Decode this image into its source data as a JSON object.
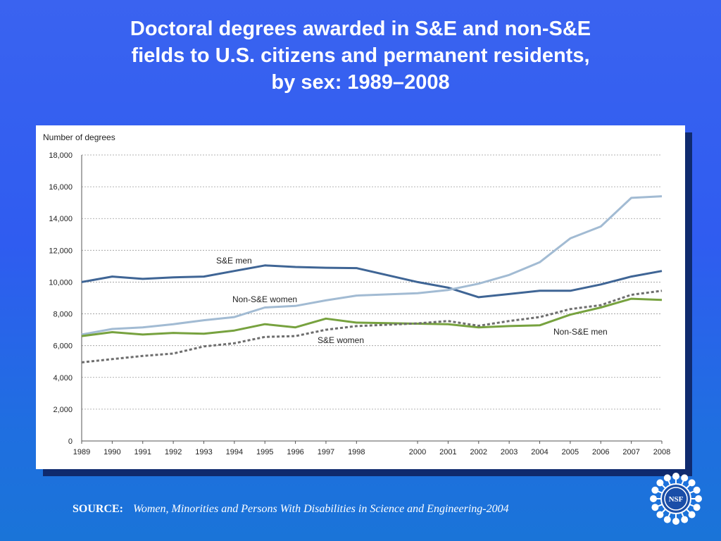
{
  "title_lines": [
    "Doctoral degrees awarded in S&E and non-S&E",
    "fields to U.S. citizens and permanent residents,",
    "by sex: 1989–2008"
  ],
  "source": {
    "label": "SOURCE:",
    "reference": "Women, Minorities and Persons With Disabilities in Science and Engineering-2004"
  },
  "logo_text": "NSF",
  "colors": {
    "sne_men": "#3f6595",
    "non_sne_women": "#a2bbd3",
    "non_sne_men": "#77a23f",
    "sne_women": "#6e6e6e",
    "background": "#2f5cf0"
  },
  "chart_data": {
    "type": "line",
    "ylabel": "Number of degrees",
    "ylim": [
      0,
      18000
    ],
    "yticks": [
      "0",
      "2,000",
      "4,000",
      "6,000",
      "8,000",
      "10,000",
      "12,000",
      "14,000",
      "16,000",
      "18,000"
    ],
    "ytick_values": [
      0,
      2000,
      4000,
      6000,
      8000,
      10000,
      12000,
      14000,
      16000,
      18000
    ],
    "x": [
      1989,
      1990,
      1991,
      1992,
      1993,
      1994,
      1995,
      1996,
      1997,
      1998,
      2000,
      2001,
      2002,
      2003,
      2004,
      2005,
      2006,
      2007,
      2008
    ],
    "xtick_labels": [
      "1989",
      "1990",
      "1991",
      "1992",
      "1993",
      "1994",
      "1995",
      "1996",
      "1997",
      "1998",
      "2000",
      "2001",
      "2002",
      "2003",
      "2004",
      "2005",
      "2006",
      "2007",
      "2008"
    ],
    "grid": true,
    "series": [
      {
        "name": "S&E men",
        "key": "sne_men",
        "dashed": false,
        "values": [
          10000,
          10350,
          10200,
          10300,
          10350,
          10700,
          11050,
          10950,
          10900,
          10880,
          10000,
          9650,
          9050,
          9250,
          9450,
          9450,
          9850,
          10350,
          10700
        ]
      },
      {
        "name": "Non-S&E women",
        "key": "non_sne_women",
        "dashed": false,
        "values": [
          6700,
          7050,
          7150,
          7350,
          7600,
          7800,
          8400,
          8500,
          8850,
          9150,
          9300,
          9500,
          9900,
          10450,
          11250,
          12750,
          13500,
          15300,
          15400
        ]
      },
      {
        "name": "Non-S&E men",
        "key": "non_sne_men",
        "dashed": false,
        "values": [
          6600,
          6850,
          6700,
          6800,
          6750,
          6950,
          7350,
          7150,
          7700,
          7450,
          7380,
          7350,
          7150,
          7230,
          7280,
          7950,
          8400,
          8950,
          8880
        ]
      },
      {
        "name": "S&E women",
        "key": "sne_women",
        "dashed": true,
        "values": [
          4950,
          5150,
          5350,
          5500,
          5950,
          6150,
          6550,
          6600,
          7000,
          7230,
          7400,
          7550,
          7250,
          7550,
          7800,
          8300,
          8550,
          9200,
          9450
        ]
      }
    ],
    "annotations": [
      "S&E men",
      "Non-S&E women",
      "Non-S&E men",
      "S&E women"
    ]
  }
}
